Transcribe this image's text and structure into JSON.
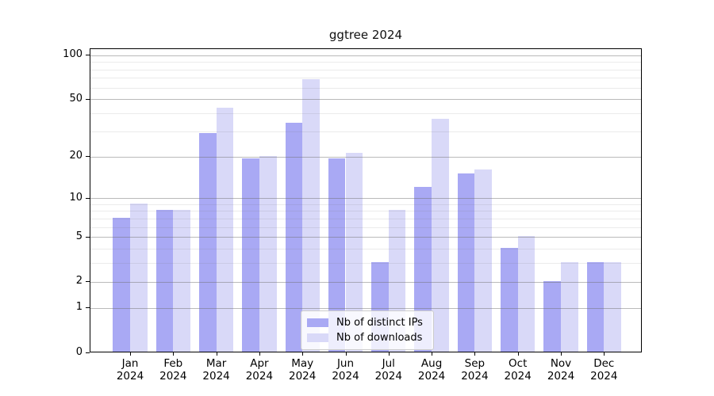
{
  "title": "ggtree 2024",
  "legend": {
    "position": "lower center",
    "items": [
      {
        "label": "Nb of distinct IPs",
        "color": "#a9a9f4"
      },
      {
        "label": "Nb of downloads",
        "color": "#d9d9f8"
      }
    ]
  },
  "chart_data": {
    "type": "bar",
    "title": "ggtree 2024",
    "categories": [
      "Jan 2024",
      "Feb 2024",
      "Mar 2024",
      "Apr 2024",
      "May 2024",
      "Jun 2024",
      "Jul 2024",
      "Aug 2024",
      "Sep 2024",
      "Oct 2024",
      "Nov 2024",
      "Dec 2024"
    ],
    "series": [
      {
        "name": "Nb of distinct IPs",
        "color": "#a9a9f4",
        "values": [
          7,
          8,
          29,
          19,
          34,
          19,
          3,
          12,
          15,
          4,
          2,
          3
        ]
      },
      {
        "name": "Nb of downloads",
        "color": "#d9d9f8",
        "values": [
          9,
          8,
          43,
          20,
          68,
          21,
          8,
          36,
          16,
          5,
          3,
          3
        ]
      }
    ],
    "xlabel": "",
    "ylabel": "",
    "yscale": "log1p",
    "ylim": [
      0,
      112
    ],
    "y_ticks": [
      0,
      1,
      2,
      5,
      10,
      20,
      50,
      100
    ],
    "y_minor_ticks": [
      3,
      4,
      6,
      7,
      8,
      9,
      30,
      40,
      60,
      70,
      80,
      90
    ],
    "grid": "horizontal",
    "legend_position": "lower center"
  },
  "colors": {
    "background": "#ffffff",
    "spine": "#000000",
    "grid_major": "#c6c6c6",
    "grid_minor": "#eaeaea",
    "bar_distinct_ips": "#a9a9f4",
    "bar_downloads": "#d9d9f8"
  }
}
